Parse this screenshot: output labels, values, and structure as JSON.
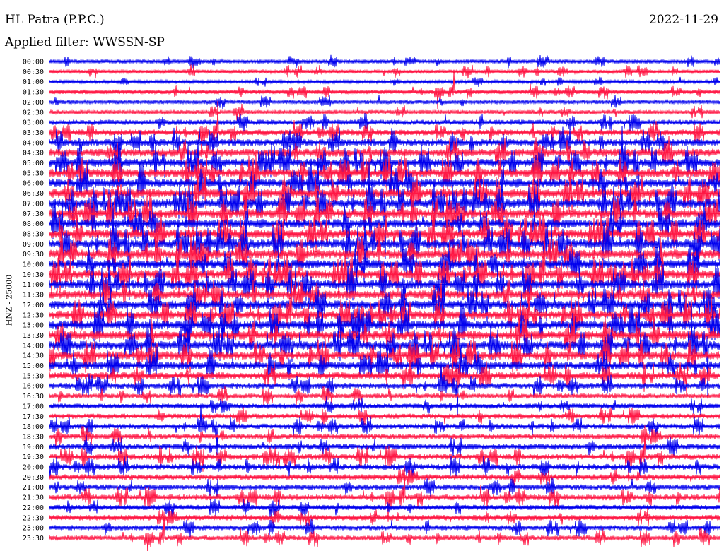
{
  "header": {
    "station": "HL Patra (P.P.C.)",
    "date": "2022-11-29",
    "filter": "Applied filter: WWSSN-SP"
  },
  "axis": {
    "ylabel": "HNZ - 25000"
  },
  "colors": {
    "even_row": "#0000ee",
    "odd_row": "#ff1744",
    "background": "#ffffff"
  },
  "chart_data": {
    "type": "line",
    "title": "HL Patra (P.P.C.)",
    "subtitle": "Applied filter: WWSSN-SP",
    "date": "2022-11-29",
    "ylabel": "HNZ - 25000",
    "time_labels": [
      "00:00",
      "00:30",
      "01:00",
      "01:30",
      "02:00",
      "02:30",
      "03:00",
      "03:30",
      "04:00",
      "04:30",
      "05:00",
      "05:30",
      "06:00",
      "06:30",
      "07:00",
      "07:30",
      "08:00",
      "08:30",
      "09:00",
      "09:30",
      "10:00",
      "10:30",
      "11:00",
      "11:30",
      "12:00",
      "12:30",
      "13:00",
      "13:30",
      "14:00",
      "14:30",
      "15:00",
      "15:30",
      "16:00",
      "16:30",
      "17:00",
      "17:30",
      "18:00",
      "18:30",
      "19:00",
      "19:30",
      "20:00",
      "20:30",
      "21:00",
      "21:30",
      "22:00",
      "22:30",
      "23:00",
      "23:30"
    ],
    "row_activity": [
      0.3,
      0.3,
      0.2,
      0.35,
      0.3,
      0.35,
      0.45,
      0.55,
      0.7,
      0.8,
      0.85,
      0.9,
      0.95,
      0.95,
      0.95,
      0.95,
      0.95,
      0.95,
      0.95,
      0.95,
      0.95,
      0.95,
      0.9,
      0.9,
      0.9,
      0.9,
      0.95,
      0.95,
      0.9,
      0.85,
      0.85,
      0.7,
      0.55,
      0.45,
      0.45,
      0.45,
      0.5,
      0.5,
      0.55,
      0.55,
      0.55,
      0.5,
      0.5,
      0.55,
      0.45,
      0.5,
      0.45,
      0.45
    ],
    "series_colors": [
      "blue",
      "red"
    ],
    "grid": false
  }
}
